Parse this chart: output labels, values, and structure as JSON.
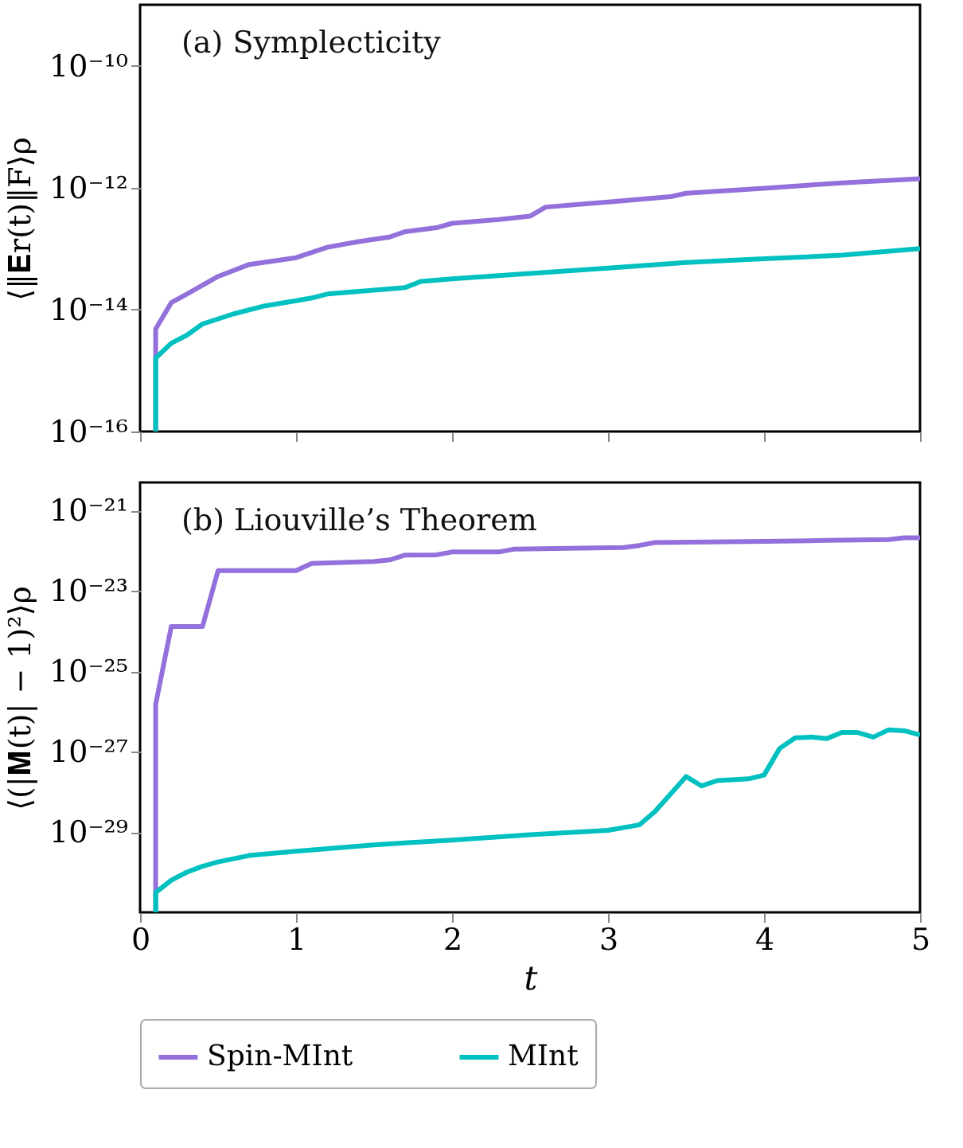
{
  "chart_data": [
    {
      "type": "line",
      "ylabel": "⟨‖𝐄r(t)‖F⟩ρ",
      "log": "y",
      "xlim": [
        0,
        5
      ],
      "xticks": [
        0,
        1,
        2,
        3,
        4,
        5
      ],
      "ylim": [
        1e-16,
        1e-09
      ],
      "tick_labels": "y",
      "yticks": [
        {
          "value": 1e-16,
          "label": "10⁻¹⁶"
        },
        {
          "value": 1e-14,
          "label": "10⁻¹⁴"
        },
        {
          "value": 1e-12,
          "label": "10⁻¹²"
        },
        {
          "value": 1e-10,
          "label": "10⁻¹⁰"
        }
      ],
      "annotations": [
        "(a) Symplecticity"
      ],
      "grid": false,
      "legend": "bottom",
      "line_style": "solid",
      "marker": "none",
      "series": [
        {
          "name": "Spin-MInt",
          "color": "#9370db",
          "x": [
            0.1,
            0.1,
            0.2,
            0.3,
            0.5,
            0.7,
            1.0,
            1.2,
            1.4,
            1.6,
            1.7,
            1.9,
            2.0,
            2.3,
            2.5,
            2.6,
            3.0,
            3.4,
            3.5,
            4.0,
            4.5,
            5.0
          ],
          "values": [
            1e-16,
            4.8e-15,
            1.3e-14,
            1.8e-14,
            3.5e-14,
            5.5e-14,
            7.1e-14,
            1.05e-13,
            1.3e-13,
            1.55e-13,
            1.9e-13,
            2.2e-13,
            2.6e-13,
            3e-13,
            3.4e-13,
            4.8e-13,
            5.8e-13,
            7.1e-13,
            8.1e-13,
            9.8e-13,
            1.2e-12,
            1.4e-12
          ]
        },
        {
          "name": "MInt",
          "color": "#00c0c0",
          "x": [
            0.1,
            0.1,
            0.2,
            0.3,
            0.4,
            0.6,
            0.8,
            1.0,
            1.1,
            1.2,
            1.7,
            1.8,
            2.0,
            2.5,
            3.0,
            3.5,
            4.0,
            4.5,
            5.0
          ],
          "values": [
            1e-16,
            1.6e-15,
            2.8e-15,
            3.8e-15,
            5.8e-15,
            8.5e-15,
            1.15e-14,
            1.4e-14,
            1.55e-14,
            1.8e-14,
            2.3e-14,
            2.9e-14,
            3.2e-14,
            3.9e-14,
            4.8e-14,
            5.9e-14,
            6.8e-14,
            7.8e-14,
            1e-13
          ]
        }
      ]
    },
    {
      "type": "line",
      "xlabel": "t",
      "ylabel": "⟨(|𝐌(t)| − 1)²⟩ρ",
      "log": "y",
      "xlim": [
        0,
        5
      ],
      "xticks": [
        0,
        1,
        2,
        3,
        4,
        5
      ],
      "ylim": [
        1e-31,
        5e-21
      ],
      "yticks": [
        {
          "value": 1e-29,
          "label": "10⁻²⁹"
        },
        {
          "value": 1e-27,
          "label": "10⁻²⁷"
        },
        {
          "value": 1e-25,
          "label": "10⁻²⁵"
        },
        {
          "value": 1e-23,
          "label": "10⁻²³"
        },
        {
          "value": 1e-21,
          "label": "10⁻²¹"
        }
      ],
      "annotations": [
        "(b) Liouville’s Theorem"
      ],
      "grid": false,
      "legend": "bottom",
      "line_style": "solid",
      "marker": "none",
      "series": [
        {
          "name": "Spin-MInt",
          "color": "#9370db",
          "x": [
            0.1,
            0.1,
            0.2,
            0.4,
            0.5,
            1.0,
            1.1,
            1.5,
            1.6,
            1.7,
            1.9,
            2.0,
            2.3,
            2.4,
            3.1,
            3.2,
            3.3,
            4.0,
            4.4,
            4.8,
            4.9,
            5.0
          ],
          "values": [
            1e-31,
            1.5e-26,
            1.3e-24,
            1.3e-24,
            3.2e-23,
            3.2e-23,
            4.8e-23,
            5.4e-23,
            5.9e-23,
            7.8e-23,
            7.9e-23,
            9.3e-23,
            9.3e-23,
            1.1e-22,
            1.2e-22,
            1.35e-22,
            1.6e-22,
            1.7e-22,
            1.8e-22,
            1.9e-22,
            2.1e-22,
            2.1e-22
          ]
        },
        {
          "name": "MInt",
          "color": "#00c0c0",
          "x": [
            0.1,
            0.1,
            0.2,
            0.3,
            0.4,
            0.5,
            0.7,
            1.0,
            1.5,
            2.0,
            2.5,
            3.0,
            3.2,
            3.3,
            3.5,
            3.6,
            3.7,
            3.9,
            4.0,
            4.1,
            4.2,
            4.3,
            4.4,
            4.5,
            4.6,
            4.7,
            4.8,
            4.9,
            5.0
          ],
          "values": [
            1e-31,
            3.1e-31,
            6.3e-31,
            1e-30,
            1.4e-30,
            1.8e-30,
            2.6e-30,
            3.3e-30,
            4.8e-30,
            6.3e-30,
            8.5e-30,
            1.1e-29,
            1.5e-29,
            3.2e-29,
            2.4e-28,
            1.4e-28,
            1.9e-28,
            2.1e-28,
            2.6e-28,
            1.2e-27,
            2.2e-27,
            2.3e-27,
            2.1e-27,
            3e-27,
            3e-27,
            2.3e-27,
            3.5e-27,
            3.3e-27,
            2.6e-27
          ]
        }
      ]
    }
  ]
}
